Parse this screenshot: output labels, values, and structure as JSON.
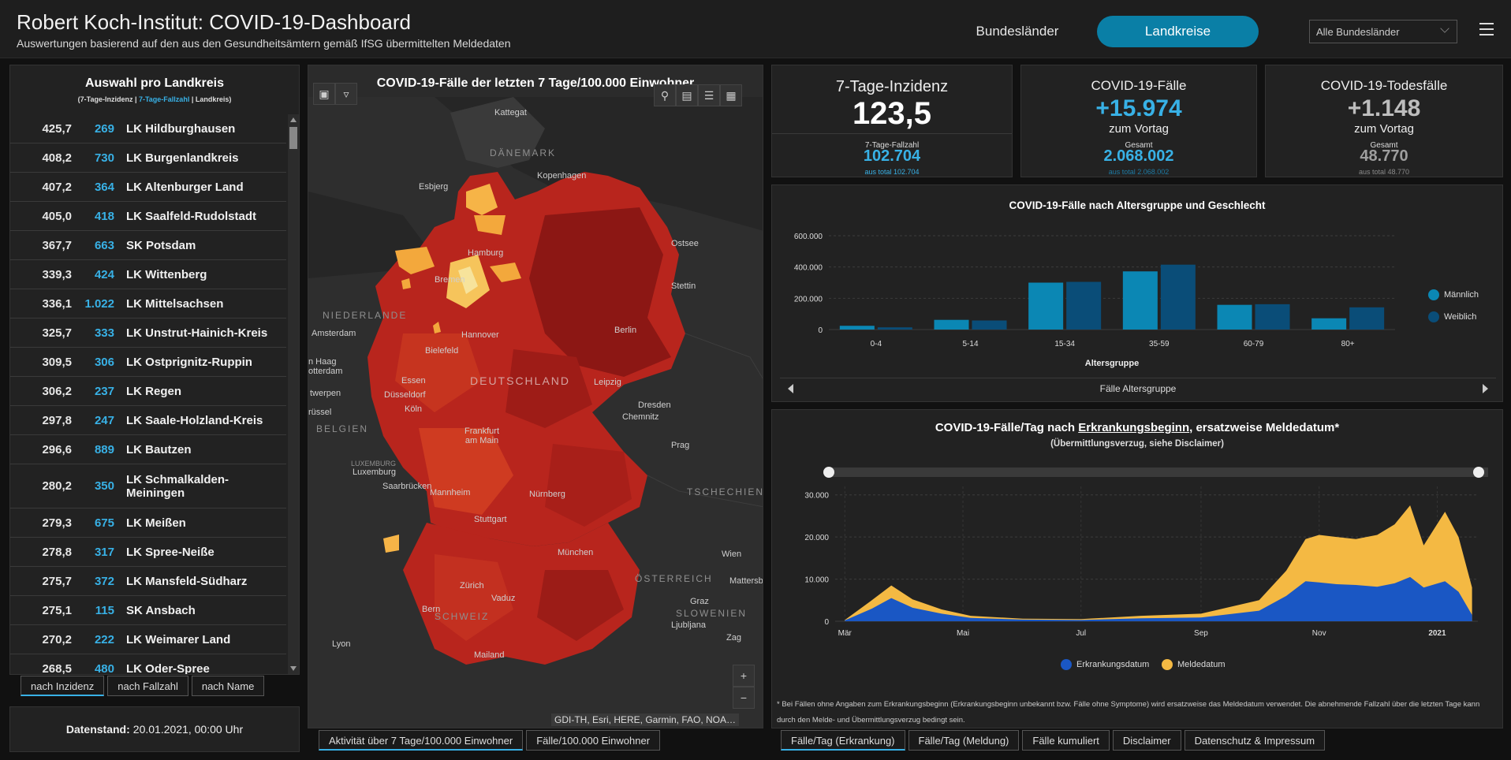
{
  "header": {
    "title": "Robert Koch-Institut: COVID-19-Dashboard",
    "subtitle": "Auswertungen basierend auf den aus den Gesundheitsämtern gemäß IfSG übermittelten Meldedaten",
    "nav_bundeslaender": "Bundesländer",
    "nav_landkreise": "Landkreise",
    "select_value": "Alle Bundesländer"
  },
  "list": {
    "title": "Auswahl pro Landkreis",
    "sub_a": "(7-Tage-Inzidenz | ",
    "sub_b": "7-Tage-Fallzahl",
    "sub_c": " | Landkreis)",
    "rows": [
      {
        "inz": "425,7",
        "fz": "269",
        "name": "LK Hildburghausen"
      },
      {
        "inz": "408,2",
        "fz": "730",
        "name": "LK Burgenlandkreis"
      },
      {
        "inz": "407,2",
        "fz": "364",
        "name": "LK Altenburger Land"
      },
      {
        "inz": "405,0",
        "fz": "418",
        "name": "LK Saalfeld-Rudolstadt"
      },
      {
        "inz": "367,7",
        "fz": "663",
        "name": "SK Potsdam"
      },
      {
        "inz": "339,3",
        "fz": "424",
        "name": "LK Wittenberg"
      },
      {
        "inz": "336,1",
        "fz": "1.022",
        "name": "LK Mittelsachsen"
      },
      {
        "inz": "325,7",
        "fz": "333",
        "name": "LK Unstrut-Hainich-Kreis"
      },
      {
        "inz": "309,5",
        "fz": "306",
        "name": "LK Ostprignitz-Ruppin"
      },
      {
        "inz": "306,2",
        "fz": "237",
        "name": "LK Regen"
      },
      {
        "inz": "297,8",
        "fz": "247",
        "name": "LK Saale-Holzland-Kreis"
      },
      {
        "inz": "296,6",
        "fz": "889",
        "name": "LK Bautzen"
      },
      {
        "inz": "280,2",
        "fz": "350",
        "name": "LK Schmalkalden-Meiningen"
      },
      {
        "inz": "279,3",
        "fz": "675",
        "name": "LK Meißen"
      },
      {
        "inz": "278,8",
        "fz": "317",
        "name": "LK Spree-Neiße"
      },
      {
        "inz": "275,7",
        "fz": "372",
        "name": "LK Mansfeld-Südharz"
      },
      {
        "inz": "275,1",
        "fz": "115",
        "name": "SK Ansbach"
      },
      {
        "inz": "270,2",
        "fz": "222",
        "name": "LK Weimarer Land"
      },
      {
        "inz": "268,5",
        "fz": "480",
        "name": "LK Oder-Spree"
      }
    ],
    "tabs": [
      "nach Inzidenz",
      "nach Fallzahl",
      "nach Name"
    ]
  },
  "datestand": {
    "label": "Datenstand:",
    "value": "20.01.2021, 00:00 Uhr"
  },
  "map": {
    "title": "COVID-19-Fälle der letzten 7 Tage/100.000 Einwohner",
    "attribution": "GDI-TH, Esri, HERE, Garmin, FAO, NOA…",
    "tabs": [
      "Aktivität über 7 Tage/100.000 Einwohner",
      "Fälle/100.000 Einwohner"
    ],
    "labels": [
      "Kattegat",
      "Esbjerg",
      "Kopenhagen",
      "Ostsee",
      "Hamburg",
      "Bremen",
      "Stettin",
      "Amsterdam",
      "Hannover",
      "Berlin",
      "Bielefeld",
      "Essen",
      "Düsseldorf",
      "Leipzig",
      "Köln",
      "Dresden",
      "Chemnitz",
      "Frankfurt am Main",
      "Prag",
      "Luxemburg",
      "Saarbrücken",
      "Mannheim",
      "Nürnberg",
      "Stuttgart",
      "München",
      "Wien",
      "Zürich",
      "Vaduz",
      "Graz",
      "Bern",
      "Ljubljana",
      "Lyon",
      "Mailand",
      "Mattersb.",
      "Zag",
      "n Haag otterdam",
      "twerpen",
      "rüssel"
    ],
    "countries": [
      "DÄNEMARK",
      "NIEDERLANDE",
      "DEUTSCHLAND",
      "BELGIEN",
      "LUXEMBURG",
      "TSCHECHIEN",
      "ÖSTERREICH",
      "SCHWEIZ",
      "SLOWENIEN"
    ]
  },
  "kpis": [
    {
      "title": "7-Tage-Inzidenz",
      "big": "123,5",
      "small": "7-Tage-Fallzahl",
      "mid": "102.704",
      "tiny": "aus total 102.704",
      "color": "#38b1e6"
    },
    {
      "title": "COVID-19-Fälle",
      "big": "+15.974",
      "vortag": "zum Vortag",
      "small": "Gesamt",
      "mid": "2.068.002",
      "tiny": "aus total 2.068.002",
      "color": "#38b1e6"
    },
    {
      "title": "COVID-19-Todesfälle",
      "big": "+1.148",
      "vortag": "zum Vortag",
      "small": "Gesamt",
      "mid": "48.770",
      "tiny": "aus total 48.770",
      "color": "#bdbdbd"
    }
  ],
  "chart_data": [
    {
      "type": "bar",
      "title": "COVID-19-Fälle nach Altersgruppe und Geschlecht",
      "xlabel": "Altersgruppe",
      "categories": [
        "0-4",
        "5-14",
        "15-34",
        "35-59",
        "60-79",
        "80+"
      ],
      "series": [
        {
          "name": "Männlich",
          "color": "#0b87b4",
          "values": [
            24000,
            62000,
            300000,
            372000,
            158000,
            72000
          ]
        },
        {
          "name": "Weiblich",
          "color": "#0a4d78",
          "values": [
            14000,
            58000,
            305000,
            415000,
            162000,
            142000
          ]
        }
      ],
      "ylim": [
        0,
        600000
      ],
      "yticks": [
        "0",
        "200.000",
        "400.000",
        "600.000"
      ],
      "nav_label": "Fälle Altersgruppe",
      "legend": "right"
    },
    {
      "type": "area",
      "title_a": "COVID-19-Fälle/Tag nach ",
      "title_u": "Erkrankungsbeginn",
      "title_b": ", ersatzweise Meldedatum*",
      "subtitle": "(Übermittlungsverzug, siehe Disclaimer)",
      "x_ticks": [
        "Mär",
        "Mai",
        "Jul",
        "Sep",
        "Nov",
        "2021"
      ],
      "yticks": [
        "0",
        "10.000",
        "20.000",
        "30.000"
      ],
      "ylim": [
        0,
        30000
      ],
      "x": [
        "2020-03-01",
        "2020-03-15",
        "2020-03-25",
        "2020-04-05",
        "2020-04-20",
        "2020-05-05",
        "2020-06-01",
        "2020-07-01",
        "2020-08-01",
        "2020-09-01",
        "2020-10-01",
        "2020-10-15",
        "2020-10-25",
        "2020-11-01",
        "2020-11-10",
        "2020-11-20",
        "2020-12-01",
        "2020-12-10",
        "2020-12-18",
        "2020-12-25",
        "2021-01-05",
        "2021-01-12",
        "2021-01-19"
      ],
      "series": [
        {
          "name": "Erkrankungsdatum",
          "color": "#1a57c4",
          "values": [
            200,
            3000,
            5500,
            3200,
            1800,
            800,
            400,
            300,
            700,
            900,
            2500,
            6000,
            9500,
            9200,
            8800,
            8600,
            8200,
            9000,
            10500,
            8000,
            9500,
            7000,
            1500
          ]
        },
        {
          "name": "Meldedatum",
          "color": "#f4b943",
          "values": [
            300,
            5000,
            8500,
            5200,
            2800,
            1300,
            600,
            500,
            1300,
            1800,
            5000,
            12000,
            19500,
            20500,
            20000,
            19500,
            20500,
            23000,
            27500,
            18000,
            26000,
            20000,
            8000
          ]
        }
      ]
    }
  ],
  "chart2_legend": [
    "Erkrankungsdatum",
    "Meldedatum"
  ],
  "footnote": "* Bei Fällen ohne Angaben zum Erkrankungsbeginn (Erkrankungsbeginn unbekannt bzw. Fälle ohne Symptome) wird ersatzweise das Meldedatum verwendet. Die abnehmende Fallzahl über die letzten Tage kann durch den Melde- und Übermittlungsverzug bedingt sein.",
  "bottom_tabs": [
    "Fälle/Tag (Erkrankung)",
    "Fälle/Tag (Meldung)",
    "Fälle kumuliert",
    "Disclaimer",
    "Datenschutz & Impressum"
  ]
}
